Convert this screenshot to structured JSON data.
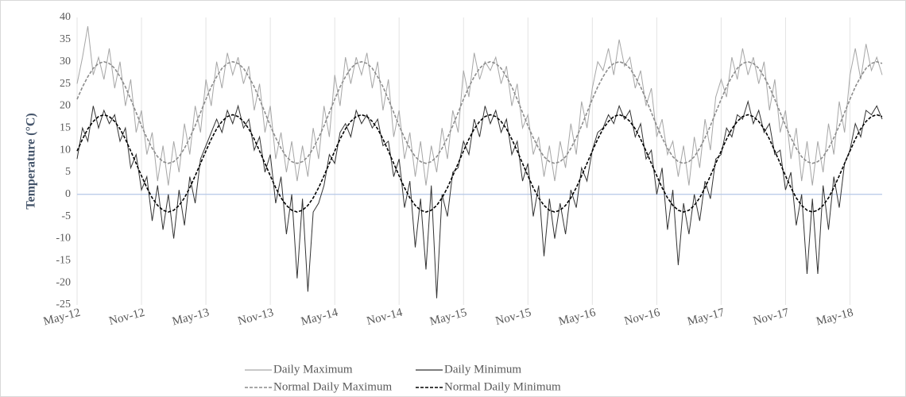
{
  "chart_data": {
    "type": "line",
    "y_label": "Temperature (°C)",
    "categories": [
      "May-12",
      null,
      null,
      null,
      null,
      null,
      null,
      null,
      null,
      null,
      null,
      null,
      "Nov-12",
      null,
      null,
      null,
      null,
      null,
      null,
      null,
      null,
      null,
      null,
      null,
      "May-13",
      null,
      null,
      null,
      null,
      null,
      null,
      null,
      null,
      null,
      null,
      null,
      "Nov-13",
      null,
      null,
      null,
      null,
      null,
      null,
      null,
      null,
      null,
      null,
      null,
      "May-14",
      null,
      null,
      null,
      null,
      null,
      null,
      null,
      null,
      null,
      null,
      null,
      "Nov-14",
      null,
      null,
      null,
      null,
      null,
      null,
      null,
      null,
      null,
      null,
      null,
      "May-15",
      null,
      null,
      null,
      null,
      null,
      null,
      null,
      null,
      null,
      null,
      null,
      "Nov-15",
      null,
      null,
      null,
      null,
      null,
      null,
      null,
      null,
      null,
      null,
      null,
      "May-16",
      null,
      null,
      null,
      null,
      null,
      null,
      null,
      null,
      null,
      null,
      null,
      "Nov-16",
      null,
      null,
      null,
      null,
      null,
      null,
      null,
      null,
      null,
      null,
      null,
      "May-17",
      null,
      null,
      null,
      null,
      null,
      null,
      null,
      null,
      null,
      null,
      null,
      "Nov-17",
      null,
      null,
      null,
      null,
      null,
      null,
      null,
      null,
      null,
      null,
      null,
      "May-18",
      null,
      null,
      null,
      null,
      null,
      null
    ],
    "series": [
      {
        "name": "Daily Maximum",
        "color": "#a6a6a6",
        "dash": false,
        "values": [
          25,
          31,
          38,
          27,
          31,
          26,
          33,
          24,
          30,
          20,
          26,
          14,
          19,
          9,
          14,
          3,
          11,
          2,
          12,
          5,
          16,
          9,
          20,
          14,
          26,
          20,
          30,
          24,
          32,
          27,
          31,
          25,
          29,
          19,
          25,
          14,
          20,
          8,
          14,
          5,
          12,
          3,
          11,
          4,
          15,
          8,
          20,
          13,
          27,
          20,
          31,
          25,
          31,
          27,
          32,
          24,
          30,
          19,
          26,
          13,
          19,
          8,
          14,
          4,
          12,
          2,
          11,
          5,
          15,
          8,
          19,
          14,
          28,
          22,
          32,
          26,
          30,
          28,
          31,
          25,
          29,
          20,
          25,
          15,
          18,
          9,
          13,
          4,
          11,
          3,
          12,
          6,
          16,
          9,
          21,
          15,
          24,
          30,
          28,
          33,
          27,
          35,
          29,
          31,
          24,
          28,
          20,
          24,
          13,
          17,
          9,
          12,
          4,
          11,
          2,
          13,
          6,
          17,
          10,
          22,
          26,
          22,
          31,
          26,
          33,
          27,
          31,
          25,
          30,
          19,
          26,
          14,
          19,
          8,
          15,
          3,
          12,
          2,
          12,
          5,
          16,
          9,
          21,
          14,
          27,
          33,
          26,
          34,
          28,
          31,
          27
        ]
      },
      {
        "name": "Daily Minimum",
        "color": "#333333",
        "dash": false,
        "values": [
          8,
          15,
          12,
          20,
          15,
          19,
          16,
          18,
          12,
          15,
          6,
          9,
          1,
          4,
          -6,
          2,
          -8,
          0,
          -10,
          1,
          -7,
          4,
          -2,
          8,
          11,
          14,
          17,
          14,
          19,
          16,
          20,
          15,
          17,
          10,
          13,
          5,
          9,
          -2,
          4,
          -9,
          0,
          -19,
          -1,
          -22,
          -4,
          -2,
          2,
          9,
          7,
          14,
          16,
          13,
          19,
          16,
          18,
          15,
          17,
          11,
          12,
          4,
          8,
          -3,
          3,
          -12,
          -1,
          -17,
          2,
          -23.5,
          0,
          -5,
          5,
          6,
          12,
          9,
          17,
          13,
          20,
          16,
          19,
          14,
          17,
          9,
          12,
          3,
          7,
          -5,
          2,
          -14,
          -1,
          -10,
          -2,
          -9,
          1,
          -3,
          6,
          3,
          10,
          14,
          15,
          18,
          16,
          20,
          17,
          19,
          13,
          16,
          8,
          10,
          0,
          6,
          -8,
          1,
          -16,
          -2,
          -9,
          0,
          -6,
          3,
          -1,
          8,
          9,
          15,
          13,
          18,
          17,
          21,
          16,
          19,
          14,
          16,
          9,
          10,
          1,
          5,
          -7,
          0,
          -18,
          -1,
          -18,
          2,
          -8,
          4,
          -3,
          7,
          10,
          16,
          13,
          19,
          18,
          20,
          17
        ]
      },
      {
        "name": "Normal Daily Maximum",
        "color": "#8c8c8c",
        "dash": true,
        "values": [
          21.5,
          24.3,
          26.6,
          28.5,
          29.6,
          30,
          29.6,
          28.5,
          26.6,
          24.3,
          21.5,
          18.5,
          15.5,
          12.8,
          10.4,
          8.5,
          7.4,
          7,
          7.4,
          8.5,
          10.4,
          12.8,
          15.5,
          18.5,
          21.5,
          24.3,
          26.6,
          28.5,
          29.6,
          30,
          29.6,
          28.5,
          26.6,
          24.3,
          21.5,
          18.5,
          15.5,
          12.8,
          10.4,
          8.5,
          7.4,
          7,
          7.4,
          8.5,
          10.4,
          12.8,
          15.5,
          18.5,
          21.5,
          24.3,
          26.6,
          28.5,
          29.6,
          30,
          29.6,
          28.5,
          26.6,
          24.3,
          21.5,
          18.5,
          15.5,
          12.8,
          10.4,
          8.5,
          7.4,
          7,
          7.4,
          8.5,
          10.4,
          12.8,
          15.5,
          18.5,
          21.5,
          24.3,
          26.6,
          28.5,
          29.6,
          30,
          29.6,
          28.5,
          26.6,
          24.3,
          21.5,
          18.5,
          15.5,
          12.8,
          10.4,
          8.5,
          7.4,
          7,
          7.4,
          8.5,
          10.4,
          12.8,
          15.5,
          18.5,
          21.5,
          24.3,
          26.6,
          28.5,
          29.6,
          30,
          29.6,
          28.5,
          26.6,
          24.3,
          21.5,
          18.5,
          15.5,
          12.8,
          10.4,
          8.5,
          7.4,
          7,
          7.4,
          8.5,
          10.4,
          12.8,
          15.5,
          18.5,
          21.5,
          24.3,
          26.6,
          28.5,
          29.6,
          30,
          29.6,
          28.5,
          26.6,
          24.3,
          21.5,
          18.5,
          15.5,
          12.8,
          10.4,
          8.5,
          7.4,
          7,
          7.4,
          8.5,
          10.4,
          12.8,
          15.5,
          18.5,
          21.5,
          24.3,
          26.6,
          28.5,
          29.6,
          30,
          29.6
        ]
      },
      {
        "name": "Normal Daily Minimum",
        "color": "#000000",
        "dash": true,
        "values": [
          9.8,
          12.5,
          14.8,
          16.5,
          17.6,
          18,
          17.6,
          16.5,
          14.8,
          12.5,
          9.8,
          7,
          4.2,
          1.5,
          -0.8,
          -2.5,
          -3.6,
          -4,
          -3.6,
          -2.5,
          -0.8,
          1.5,
          4.2,
          7,
          9.8,
          12.5,
          14.8,
          16.5,
          17.6,
          18,
          17.6,
          16.5,
          14.8,
          12.5,
          9.8,
          7,
          4.2,
          1.5,
          -0.8,
          -2.5,
          -3.6,
          -4,
          -3.6,
          -2.5,
          -0.8,
          1.5,
          4.2,
          7,
          9.8,
          12.5,
          14.8,
          16.5,
          17.6,
          18,
          17.6,
          16.5,
          14.8,
          12.5,
          9.8,
          7,
          4.2,
          1.5,
          -0.8,
          -2.5,
          -3.6,
          -4,
          -3.6,
          -2.5,
          -0.8,
          1.5,
          4.2,
          7,
          9.8,
          12.5,
          14.8,
          16.5,
          17.6,
          18,
          17.6,
          16.5,
          14.8,
          12.5,
          9.8,
          7,
          4.2,
          1.5,
          -0.8,
          -2.5,
          -3.6,
          -4,
          -3.6,
          -2.5,
          -0.8,
          1.5,
          4.2,
          7,
          9.8,
          12.5,
          14.8,
          16.5,
          17.6,
          18,
          17.6,
          16.5,
          14.8,
          12.5,
          9.8,
          7,
          4.2,
          1.5,
          -0.8,
          -2.5,
          -3.6,
          -4,
          -3.6,
          -2.5,
          -0.8,
          1.5,
          4.2,
          7,
          9.8,
          12.5,
          14.8,
          16.5,
          17.6,
          18,
          17.6,
          16.5,
          14.8,
          12.5,
          9.8,
          7,
          4.2,
          1.5,
          -0.8,
          -2.5,
          -3.6,
          -4,
          -3.6,
          -2.5,
          -0.8,
          1.5,
          4.2,
          7,
          9.8,
          12.5,
          14.8,
          16.5,
          17.6,
          18,
          17.6
        ]
      }
    ],
    "ylim": [
      -25,
      40
    ],
    "yticks": [
      -25,
      -20,
      -15,
      -10,
      -5,
      0,
      5,
      10,
      15,
      20,
      25,
      30,
      35,
      40
    ],
    "grid": true,
    "legend": "bottom"
  }
}
